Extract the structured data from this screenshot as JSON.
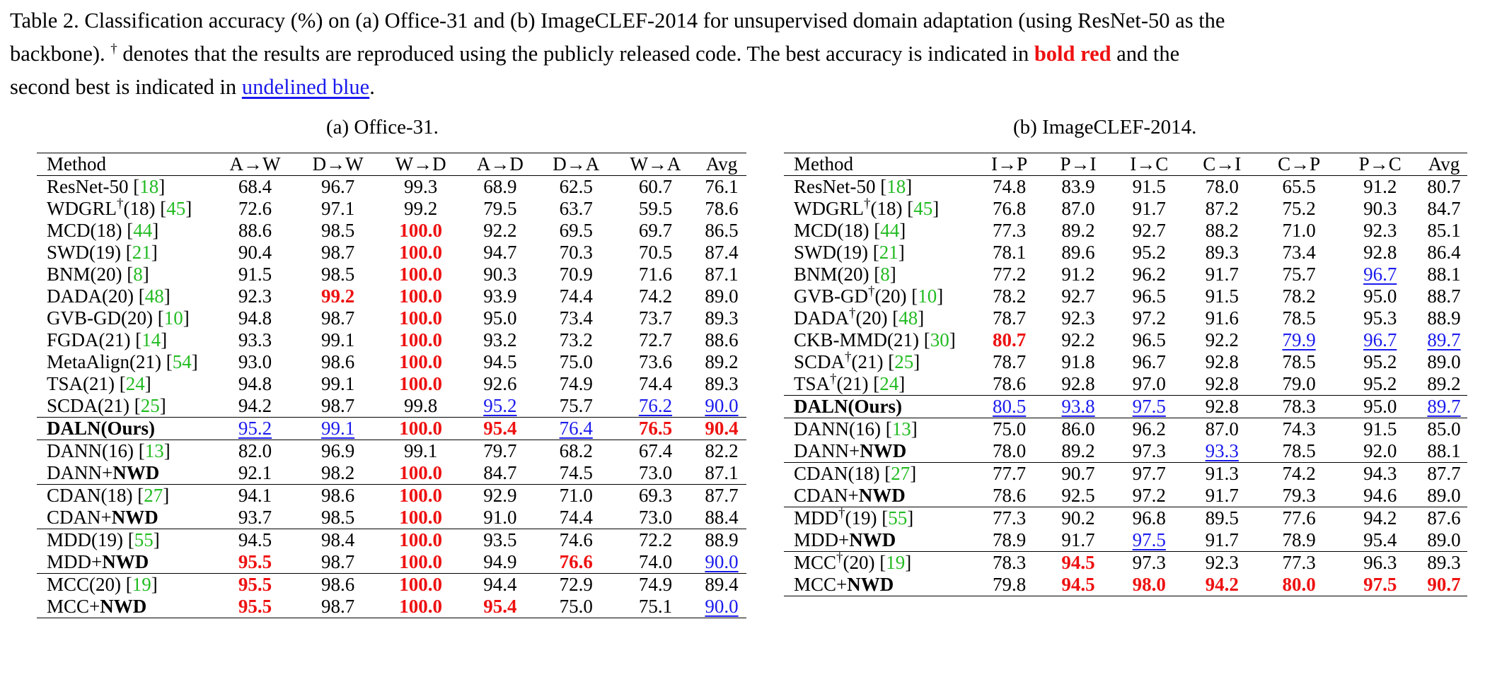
{
  "caption": {
    "line1": "Table 2. Classification accuracy (%) on (a) Office-31 and (b) ImageCLEF-2014 for unsupervised domain adaptation (using ResNet-50 as the",
    "line2_a": "backbone). ",
    "dagger": "†",
    "line2_b": " denotes that the results are reproduced using the publicly released code. The best accuracy is indicated in ",
    "bold_red": "bold red",
    "line2_c": " and the",
    "line3_a": "second best is indicated in ",
    "underlined_blue": "undelined blue",
    "line3_b": "."
  },
  "colors": {
    "best": "#ee1111",
    "second": "#1a1aee",
    "citation": "#22bb22"
  },
  "table_a": {
    "caption": "(a) Office-31.",
    "headers": [
      "Method",
      "A→W",
      "D→W",
      "W→D",
      "A→D",
      "D→A",
      "W→A",
      "Avg"
    ],
    "rows": [
      {
        "name": "ResNet-50 ",
        "cite": "18",
        "cells": [
          "68.4",
          "96.7",
          "99.3",
          "68.9",
          "62.5",
          "60.7",
          "76.1"
        ]
      },
      {
        "name": "WDGRL",
        "dagger": true,
        "suffix": "(18) ",
        "cite": "45",
        "cells": [
          "72.6",
          "97.1",
          "99.2",
          "79.5",
          "63.7",
          "59.5",
          "78.6"
        ]
      },
      {
        "name": "MCD(18) ",
        "cite": "44",
        "cells": [
          "88.6",
          "98.5",
          "100.0",
          "92.2",
          "69.5",
          "69.7",
          "86.5"
        ],
        "styles": [
          "",
          "",
          "r",
          "",
          "",
          "",
          ""
        ]
      },
      {
        "name": "SWD(19) ",
        "cite": "21",
        "cells": [
          "90.4",
          "98.7",
          "100.0",
          "94.7",
          "70.3",
          "70.5",
          "87.4"
        ],
        "styles": [
          "",
          "",
          "r",
          "",
          "",
          "",
          ""
        ]
      },
      {
        "name": "BNM(20) ",
        "cite": "8",
        "cells": [
          "91.5",
          "98.5",
          "100.0",
          "90.3",
          "70.9",
          "71.6",
          "87.1"
        ],
        "styles": [
          "",
          "",
          "r",
          "",
          "",
          "",
          ""
        ]
      },
      {
        "name": "DADA(20) ",
        "cite": "48",
        "cells": [
          "92.3",
          "99.2",
          "100.0",
          "93.9",
          "74.4",
          "74.2",
          "89.0"
        ],
        "styles": [
          "",
          "r",
          "r",
          "",
          "",
          "",
          ""
        ]
      },
      {
        "name": "GVB-GD(20) ",
        "cite": "10",
        "cells": [
          "94.8",
          "98.7",
          "100.0",
          "95.0",
          "73.4",
          "73.7",
          "89.3"
        ],
        "styles": [
          "",
          "",
          "r",
          "",
          "",
          "",
          ""
        ]
      },
      {
        "name": "FGDA(21) ",
        "cite": "14",
        "cells": [
          "93.3",
          "99.1",
          "100.0",
          "93.2",
          "73.2",
          "72.7",
          "88.6"
        ],
        "styles": [
          "",
          "",
          "r",
          "",
          "",
          "",
          ""
        ]
      },
      {
        "name": "MetaAlign(21) ",
        "cite": "54",
        "cells": [
          "93.0",
          "98.6",
          "100.0",
          "94.5",
          "75.0",
          "73.6",
          "89.2"
        ],
        "styles": [
          "",
          "",
          "r",
          "",
          "",
          "",
          ""
        ]
      },
      {
        "name": "TSA(21) ",
        "cite": "24",
        "cells": [
          "94.8",
          "99.1",
          "100.0",
          "92.6",
          "74.9",
          "74.4",
          "89.3"
        ],
        "styles": [
          "",
          "",
          "r",
          "",
          "",
          "",
          ""
        ]
      },
      {
        "name": "SCDA(21) ",
        "cite": "25",
        "cells": [
          "94.2",
          "98.7",
          "99.8",
          "95.2",
          "75.7",
          "76.2",
          "90.0"
        ],
        "styles": [
          "",
          "",
          "",
          "u",
          "",
          "u",
          "u"
        ]
      },
      {
        "name": "DALN(Ours)",
        "bold": true,
        "sep": true,
        "cells": [
          "95.2",
          "99.1",
          "100.0",
          "95.4",
          "76.4",
          "76.5",
          "90.4"
        ],
        "styles": [
          "u",
          "u",
          "r",
          "r",
          "u",
          "r",
          "r"
        ]
      },
      {
        "name": "DANN(16) ",
        "cite": "13",
        "sep": true,
        "cells": [
          "82.0",
          "96.9",
          "99.1",
          "79.7",
          "68.2",
          "67.4",
          "82.2"
        ]
      },
      {
        "name": "DANN+",
        "bold_part": "NWD",
        "cells": [
          "92.1",
          "98.2",
          "100.0",
          "84.7",
          "74.5",
          "73.0",
          "87.1"
        ],
        "styles": [
          "",
          "",
          "r",
          "",
          "",
          "",
          ""
        ]
      },
      {
        "name": "CDAN(18) ",
        "cite": "27",
        "sep": true,
        "cells": [
          "94.1",
          "98.6",
          "100.0",
          "92.9",
          "71.0",
          "69.3",
          "87.7"
        ],
        "styles": [
          "",
          "",
          "r",
          "",
          "",
          "",
          ""
        ]
      },
      {
        "name": "CDAN+",
        "bold_part": "NWD",
        "cells": [
          "93.7",
          "98.5",
          "100.0",
          "91.0",
          "74.4",
          "73.0",
          "88.4"
        ],
        "styles": [
          "",
          "",
          "r",
          "",
          "",
          "",
          ""
        ]
      },
      {
        "name": "MDD(19) ",
        "cite": "55",
        "sep": true,
        "cells": [
          "94.5",
          "98.4",
          "100.0",
          "93.5",
          "74.6",
          "72.2",
          "88.9"
        ],
        "styles": [
          "",
          "",
          "r",
          "",
          "",
          "",
          ""
        ]
      },
      {
        "name": "MDD+",
        "bold_part": "NWD",
        "cells": [
          "95.5",
          "98.7",
          "100.0",
          "94.9",
          "76.6",
          "74.0",
          "90.0"
        ],
        "styles": [
          "r",
          "",
          "r",
          "",
          "r",
          "",
          "u"
        ]
      },
      {
        "name": "MCC(20) ",
        "cite": "19",
        "sep": true,
        "cells": [
          "95.5",
          "98.6",
          "100.0",
          "94.4",
          "72.9",
          "74.9",
          "89.4"
        ],
        "styles": [
          "r",
          "",
          "r",
          "",
          "",
          "",
          ""
        ]
      },
      {
        "name": "MCC+",
        "bold_part": "NWD",
        "cells": [
          "95.5",
          "98.7",
          "100.0",
          "95.4",
          "75.0",
          "75.1",
          "90.0"
        ],
        "styles": [
          "r",
          "",
          "r",
          "r",
          "",
          "",
          "u"
        ]
      }
    ]
  },
  "table_b": {
    "caption": "(b) ImageCLEF-2014.",
    "headers": [
      "Method",
      "I→P",
      "P→I",
      "I→C",
      "C→I",
      "C→P",
      "P→C",
      "Avg"
    ],
    "rows": [
      {
        "name": "ResNet-50 ",
        "cite": "18",
        "cells": [
          "74.8",
          "83.9",
          "91.5",
          "78.0",
          "65.5",
          "91.2",
          "80.7"
        ]
      },
      {
        "name": "WDGRL",
        "dagger": true,
        "suffix": "(18) ",
        "cite": "45",
        "cells": [
          "76.8",
          "87.0",
          "91.7",
          "87.2",
          "75.2",
          "90.3",
          "84.7"
        ]
      },
      {
        "name": "MCD(18) ",
        "cite": "44",
        "cells": [
          "77.3",
          "89.2",
          "92.7",
          "88.2",
          "71.0",
          "92.3",
          "85.1"
        ]
      },
      {
        "name": "SWD(19) ",
        "cite": "21",
        "cells": [
          "78.1",
          "89.6",
          "95.2",
          "89.3",
          "73.4",
          "92.8",
          "86.4"
        ]
      },
      {
        "name": "BNM(20) ",
        "cite": "8",
        "cells": [
          "77.2",
          "91.2",
          "96.2",
          "91.7",
          "75.7",
          "96.7",
          "88.1"
        ],
        "styles": [
          "",
          "",
          "",
          "",
          "",
          "u",
          ""
        ]
      },
      {
        "name": "GVB-GD",
        "dagger": true,
        "suffix": "(20) ",
        "cite": "10",
        "cells": [
          "78.2",
          "92.7",
          "96.5",
          "91.5",
          "78.2",
          "95.0",
          "88.7"
        ]
      },
      {
        "name": "DADA",
        "dagger": true,
        "suffix": "(20) ",
        "cite": "48",
        "cells": [
          "78.7",
          "92.3",
          "97.2",
          "91.6",
          "78.5",
          "95.3",
          "88.9"
        ]
      },
      {
        "name": "CKB-MMD(21) ",
        "cite": "30",
        "cells": [
          "80.7",
          "92.2",
          "96.5",
          "92.2",
          "79.9",
          "96.7",
          "89.7"
        ],
        "styles": [
          "r",
          "",
          "",
          "",
          "u",
          "u",
          "u"
        ]
      },
      {
        "name": "SCDA",
        "dagger": true,
        "suffix": "(21) ",
        "cite": "25",
        "cells": [
          "78.7",
          "91.8",
          "96.7",
          "92.8",
          "78.5",
          "95.2",
          "89.0"
        ]
      },
      {
        "name": "TSA",
        "dagger": true,
        "suffix": "(21) ",
        "cite": "24",
        "cells": [
          "78.6",
          "92.8",
          "97.0",
          "92.8",
          "79.0",
          "95.2",
          "89.2"
        ]
      },
      {
        "name": "DALN(Ours)",
        "bold": true,
        "sep": true,
        "cells": [
          "80.5",
          "93.8",
          "97.5",
          "92.8",
          "78.3",
          "95.0",
          "89.7"
        ],
        "styles": [
          "u",
          "u",
          "u",
          "",
          "",
          "",
          "u"
        ]
      },
      {
        "name": "DANN(16) ",
        "cite": "13",
        "sep": true,
        "cells": [
          "75.0",
          "86.0",
          "96.2",
          "87.0",
          "74.3",
          "91.5",
          "85.0"
        ]
      },
      {
        "name": "DANN+",
        "bold_part": "NWD",
        "cells": [
          "78.0",
          "89.2",
          "97.3",
          "93.3",
          "78.5",
          "92.0",
          "88.1"
        ],
        "styles": [
          "",
          "",
          "",
          "u",
          "",
          "",
          ""
        ]
      },
      {
        "name": "CDAN(18) ",
        "cite": "27",
        "sep": true,
        "cells": [
          "77.7",
          "90.7",
          "97.7",
          "91.3",
          "74.2",
          "94.3",
          "87.7"
        ]
      },
      {
        "name": "CDAN+",
        "bold_part": "NWD",
        "cells": [
          "78.6",
          "92.5",
          "97.2",
          "91.7",
          "79.3",
          "94.6",
          "89.0"
        ]
      },
      {
        "name": "MDD",
        "dagger": true,
        "suffix": "(19) ",
        "cite": "55",
        "sep": true,
        "cells": [
          "77.3",
          "90.2",
          "96.8",
          "89.5",
          "77.6",
          "94.2",
          "87.6"
        ]
      },
      {
        "name": "MDD+",
        "bold_part": "NWD",
        "cells": [
          "78.9",
          "91.7",
          "97.5",
          "91.7",
          "78.9",
          "95.4",
          "89.0"
        ],
        "styles": [
          "",
          "",
          "u",
          "",
          "",
          "",
          ""
        ]
      },
      {
        "name": "MCC",
        "dagger": true,
        "suffix": "(20) ",
        "cite": "19",
        "sep": true,
        "cells": [
          "78.3",
          "94.5",
          "97.3",
          "92.3",
          "77.3",
          "96.3",
          "89.3"
        ],
        "styles": [
          "",
          "r",
          "",
          "",
          "",
          "",
          ""
        ]
      },
      {
        "name": "MCC+",
        "bold_part": "NWD",
        "cells": [
          "79.8",
          "94.5",
          "98.0",
          "94.2",
          "80.0",
          "97.5",
          "90.7"
        ],
        "styles": [
          "",
          "r",
          "r",
          "r",
          "r",
          "r",
          "r"
        ]
      }
    ]
  }
}
